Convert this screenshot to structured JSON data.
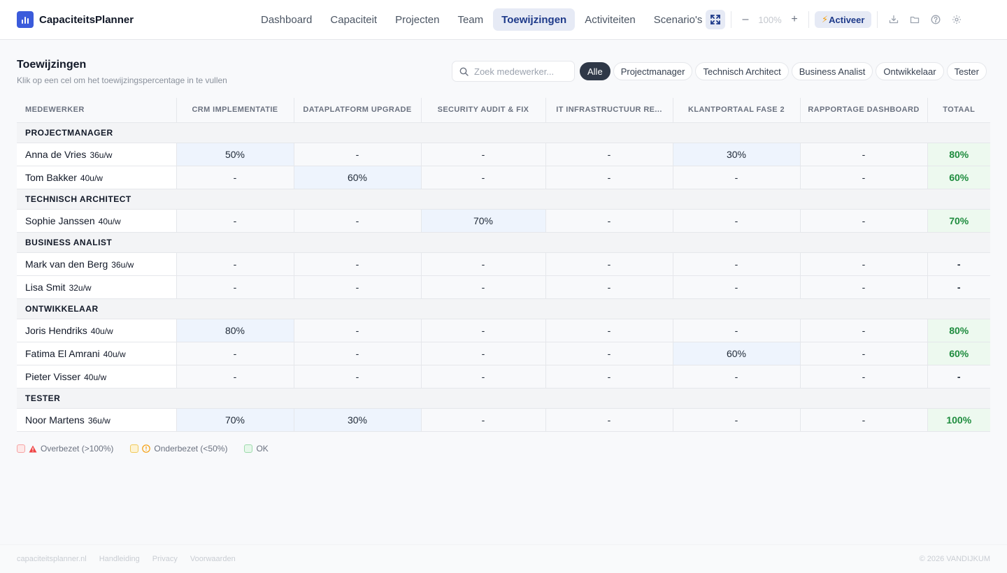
{
  "app": {
    "name": "CapaciteitsPlanner"
  },
  "nav": [
    {
      "label": "Dashboard",
      "active": false
    },
    {
      "label": "Capaciteit",
      "active": false
    },
    {
      "label": "Projecten",
      "active": false
    },
    {
      "label": "Team",
      "active": false
    },
    {
      "label": "Toewijzingen",
      "active": true
    },
    {
      "label": "Activiteiten",
      "active": false
    },
    {
      "label": "Scenario's",
      "active": false
    }
  ],
  "toolbar": {
    "zoom": "100%",
    "zoom_out_label": "–",
    "zoom_in_label": "+",
    "activate_bolt": "⚡",
    "activate_label": "Activeer",
    "icons": [
      "expand-icon",
      "download-icon",
      "folder-icon",
      "help-icon",
      "settings-icon"
    ]
  },
  "page": {
    "title": "Toewijzingen",
    "subtitle": "Klik op een cel om het toewijzingspercentage in te vullen"
  },
  "search": {
    "placeholder": "Zoek medewerker...",
    "value": ""
  },
  "filters": [
    {
      "label": "Alle",
      "active": true
    },
    {
      "label": "Projectmanager",
      "active": false
    },
    {
      "label": "Technisch Architect",
      "active": false
    },
    {
      "label": "Business Analist",
      "active": false
    },
    {
      "label": "Ontwikkelaar",
      "active": false
    },
    {
      "label": "Tester",
      "active": false
    }
  ],
  "table": {
    "columns": [
      "Medewerker",
      "CRM Implementatie",
      "Dataplatform Upgrade",
      "Security Audit & Fix",
      "IT Infrastructuur Re...",
      "Klantportaal Fase 2",
      "Rapportage Dashboard",
      "Totaal"
    ],
    "groups": [
      {
        "role": "Projectmanager",
        "rows": [
          {
            "name": "Anna de Vries",
            "hours": "36u/w",
            "cells": [
              "50%",
              "-",
              "-",
              "-",
              "30%",
              "-"
            ],
            "total": "80%"
          },
          {
            "name": "Tom Bakker",
            "hours": "40u/w",
            "cells": [
              "-",
              "60%",
              "-",
              "-",
              "-",
              "-"
            ],
            "total": "60%"
          }
        ]
      },
      {
        "role": "Technisch Architect",
        "rows": [
          {
            "name": "Sophie Janssen",
            "hours": "40u/w",
            "cells": [
              "-",
              "-",
              "70%",
              "-",
              "-",
              "-"
            ],
            "total": "70%"
          }
        ]
      },
      {
        "role": "Business Analist",
        "rows": [
          {
            "name": "Mark van den Berg",
            "hours": "36u/w",
            "cells": [
              "-",
              "-",
              "-",
              "-",
              "-",
              "-"
            ],
            "total": "-"
          },
          {
            "name": "Lisa Smit",
            "hours": "32u/w",
            "cells": [
              "-",
              "-",
              "-",
              "-",
              "-",
              "-"
            ],
            "total": "-"
          }
        ]
      },
      {
        "role": "Ontwikkelaar",
        "rows": [
          {
            "name": "Joris Hendriks",
            "hours": "40u/w",
            "cells": [
              "80%",
              "-",
              "-",
              "-",
              "-",
              "-"
            ],
            "total": "80%"
          },
          {
            "name": "Fatima El Amrani",
            "hours": "40u/w",
            "cells": [
              "-",
              "-",
              "-",
              "-",
              "60%",
              "-"
            ],
            "total": "60%"
          },
          {
            "name": "Pieter Visser",
            "hours": "40u/w",
            "cells": [
              "-",
              "-",
              "-",
              "-",
              "-",
              "-"
            ],
            "total": "-"
          }
        ]
      },
      {
        "role": "Tester",
        "rows": [
          {
            "name": "Noor Martens",
            "hours": "36u/w",
            "cells": [
              "70%",
              "30%",
              "-",
              "-",
              "-",
              "-"
            ],
            "total": "100%"
          }
        ]
      }
    ]
  },
  "legend": [
    {
      "label": "Overbezet (>100%)",
      "swatch": "red",
      "icon": "warning-triangle-icon"
    },
    {
      "label": "Onderbezet (<50%)",
      "swatch": "yellow",
      "icon": "info-circle-icon"
    },
    {
      "label": "OK",
      "swatch": "green",
      "icon": ""
    }
  ],
  "footer": {
    "links": [
      "capaciteitsplanner.nl",
      "Handleiding",
      "Privacy",
      "Voorwaarden"
    ],
    "copyright": "© 2026 VANDIJKUM"
  },
  "colors": {
    "brand": "#3b5bdb",
    "active_nav_bg": "#e6eaf5",
    "filled_cell": "#eef4fd",
    "ok_total_bg": "#edf9ef",
    "ok_total_text": "#1e8c3e"
  }
}
